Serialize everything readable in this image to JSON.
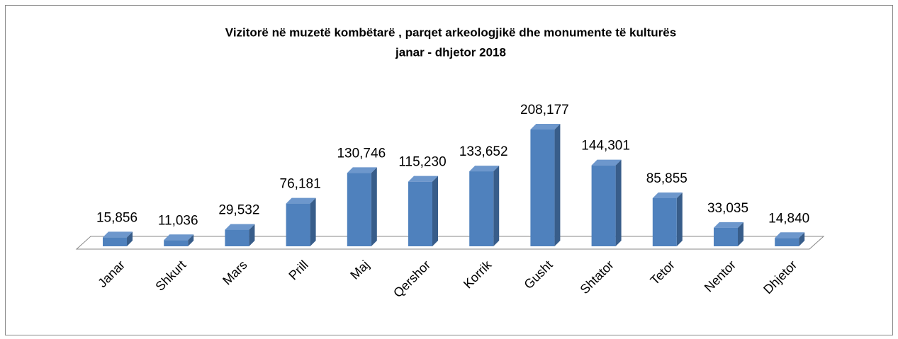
{
  "chart_data": {
    "type": "bar3d",
    "title": "Vizitorë në muzetë kombëtarë , parqet arkeologjikë  dhe monumente të kulturës",
    "subtitle": "janar - dhjetor 2018",
    "categories": [
      "Janar",
      "Shkurt",
      "Mars",
      "Prill",
      "Maj",
      "Qershor",
      "Korrik",
      "Gusht",
      "Shtator",
      "Tetor",
      "Nentor",
      "Dhjetor"
    ],
    "values": [
      15856,
      11036,
      29532,
      76181,
      130746,
      115230,
      133652,
      208177,
      144301,
      85855,
      33035,
      14840
    ],
    "value_labels": [
      "15,856",
      "11,036",
      "29,532",
      "76,181",
      "130,746",
      "115,230",
      "133,652",
      "208,177",
      "144,301",
      "85,855",
      "33,035",
      "14,840"
    ],
    "color": "#4f81bd"
  }
}
